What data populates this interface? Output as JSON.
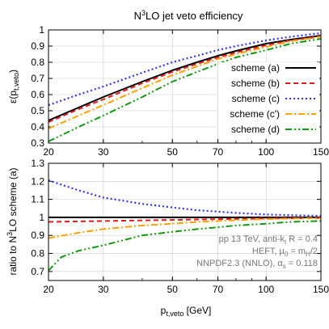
{
  "chart_data": [
    {
      "type": "line",
      "title_main": "LO jet veto efficiency",
      "title_prefix": "N",
      "title_sup": "3",
      "ylabel_main": "ε(p",
      "ylabel_sub": "t,veto",
      "ylabel_close": ")",
      "xlim": [
        20,
        150
      ],
      "ylim": [
        0.3,
        1.0
      ],
      "xscale": "log",
      "xticks": [
        "20",
        "30",
        "50",
        "70",
        "100",
        "150"
      ],
      "yticks": [
        "0.3",
        "0.4",
        "0.5",
        "0.6",
        "0.7",
        "0.8",
        "0.9",
        "1"
      ],
      "legend_position": "right",
      "series": [
        {
          "name": "scheme (a)",
          "color": "#000000",
          "dash": "solid",
          "x": [
            20,
            25,
            30,
            40,
            50,
            60,
            70,
            80,
            100,
            120,
            150
          ],
          "y": [
            0.44,
            0.52,
            0.585,
            0.68,
            0.75,
            0.8,
            0.84,
            0.87,
            0.915,
            0.94,
            0.965
          ]
        },
        {
          "name": "scheme (b)",
          "color": "#e41a1c",
          "dash": "dashed",
          "x": [
            20,
            25,
            30,
            40,
            50,
            60,
            70,
            80,
            100,
            120,
            150
          ],
          "y": [
            0.43,
            0.51,
            0.57,
            0.67,
            0.74,
            0.79,
            0.83,
            0.86,
            0.905,
            0.935,
            0.96
          ]
        },
        {
          "name": "scheme (c)",
          "color": "#3333ee",
          "dash": "dotted",
          "x": [
            20,
            25,
            30,
            40,
            50,
            60,
            70,
            80,
            100,
            120,
            150
          ],
          "y": [
            0.535,
            0.6,
            0.65,
            0.735,
            0.8,
            0.84,
            0.875,
            0.9,
            0.935,
            0.958,
            0.98
          ]
        },
        {
          "name": "scheme (c')",
          "color": "#ff9f00",
          "dash": "dashdot",
          "x": [
            20,
            25,
            30,
            40,
            50,
            60,
            70,
            80,
            100,
            120,
            150
          ],
          "y": [
            0.39,
            0.47,
            0.535,
            0.64,
            0.72,
            0.775,
            0.82,
            0.85,
            0.895,
            0.93,
            0.958
          ]
        },
        {
          "name": "scheme (d)",
          "color": "#119911",
          "dash": "dashdotdot",
          "x": [
            20,
            25,
            30,
            40,
            50,
            60,
            70,
            80,
            100,
            120,
            150
          ],
          "y": [
            0.31,
            0.4,
            0.47,
            0.585,
            0.68,
            0.74,
            0.79,
            0.83,
            0.875,
            0.915,
            0.945
          ]
        }
      ]
    },
    {
      "type": "line",
      "ylabel_pre": "ratio to N",
      "ylabel_sup": "3",
      "ylabel_post": "LO scheme (a)",
      "xlabel_main": "p",
      "xlabel_sub": "t,veto",
      "xlabel_post": " [GeV]",
      "xlim": [
        20,
        150
      ],
      "ylim": [
        0.65,
        1.3
      ],
      "xscale": "log",
      "xticks": [
        "20",
        "30",
        "50",
        "70",
        "100",
        "150"
      ],
      "yticks": [
        "0.7",
        "0.8",
        "0.9",
        "1",
        "1.1",
        "1.2",
        "1.3"
      ],
      "annotations": {
        "line1_pre": "pp 13 TeV, anti-k",
        "line1_sub": "t",
        "line1_post": " R = 0.4",
        "line2_pre": "HEFT, μ",
        "line2_sub": "0",
        "line2_mid": " = m",
        "line2_sub2": "H",
        "line2_post": "/2",
        "line3_pre": "NNPDF2.3 (NNLO), α",
        "line3_sub": "s",
        "line3_post": " = 0.118"
      },
      "series": [
        {
          "color": "#000000",
          "dash": "solid",
          "x": [
            20,
            150
          ],
          "y": [
            1.0,
            1.0
          ]
        },
        {
          "color": "#e41a1c",
          "dash": "dashed",
          "x": [
            20,
            30,
            50,
            70,
            100,
            150
          ],
          "y": [
            0.975,
            0.98,
            0.986,
            0.99,
            0.994,
            0.997
          ]
        },
        {
          "color": "#3333ee",
          "dash": "dotted",
          "x": [
            20,
            25,
            30,
            40,
            50,
            60,
            70,
            80,
            100,
            120,
            150
          ],
          "y": [
            1.205,
            1.15,
            1.11,
            1.075,
            1.055,
            1.04,
            1.032,
            1.025,
            1.016,
            1.012,
            1.008
          ]
        },
        {
          "color": "#ff9f00",
          "dash": "dashdot",
          "x": [
            20,
            25,
            30,
            40,
            50,
            60,
            70,
            80,
            100,
            120,
            150
          ],
          "y": [
            0.885,
            0.915,
            0.935,
            0.955,
            0.965,
            0.975,
            0.98,
            0.985,
            0.99,
            0.994,
            0.996
          ]
        },
        {
          "color": "#119911",
          "dash": "dashdotdot",
          "x": [
            20,
            22,
            25,
            30,
            40,
            50,
            60,
            70,
            80,
            100,
            120,
            150
          ],
          "y": [
            0.705,
            0.78,
            0.815,
            0.845,
            0.9,
            0.92,
            0.935,
            0.945,
            0.955,
            0.965,
            0.975,
            0.98
          ]
        }
      ]
    }
  ]
}
